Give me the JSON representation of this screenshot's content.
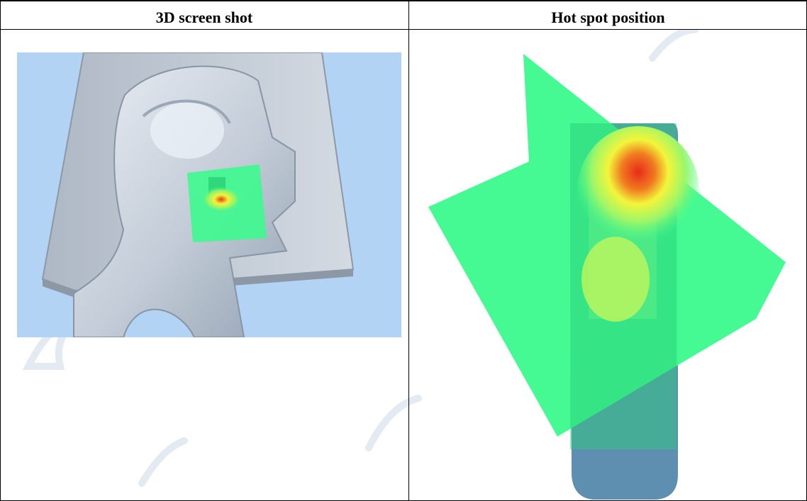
{
  "table": {
    "headers": [
      "3D screen shot",
      "Hot spot position"
    ]
  },
  "watermark": {
    "text": "AGC",
    "colors": {
      "mark": "#e8eef5"
    }
  },
  "images": {
    "left": {
      "icon": "3d-head-model-image"
    },
    "right": {
      "icon": "hot-spot-map-image"
    }
  },
  "colors": {
    "background_blue": "#b3d3f5",
    "phantom": "#c9d3de",
    "field_green": "#3dfa8e",
    "hot_red": "#e82b1a",
    "hot_yellow": "#f3f53a",
    "device_blue": "#5f8fb0"
  }
}
